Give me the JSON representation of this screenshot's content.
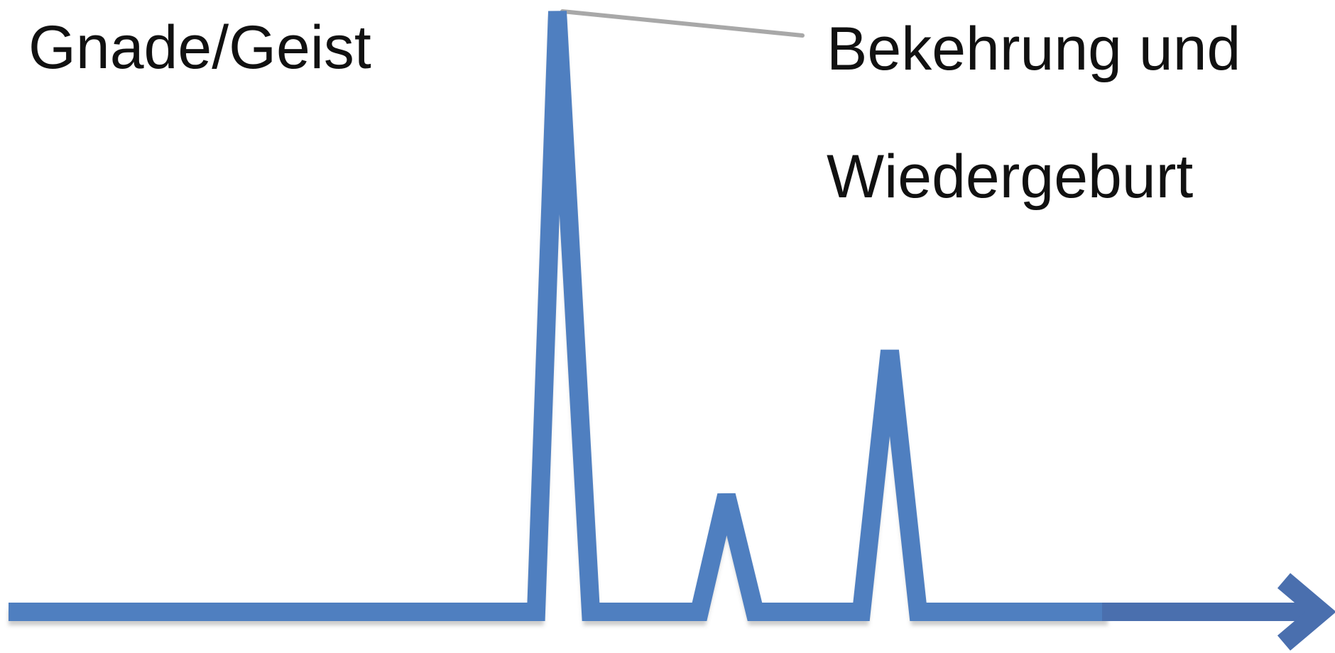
{
  "labels": {
    "left": "Gnade/Geist",
    "right_line1": "Bekehrung und",
    "right_line2": "Wiedergeburt"
  },
  "colors": {
    "line": "#4f7fc0",
    "arrow": "#4a6fae",
    "leader": "#a8a8a8",
    "shadow": "#6b6b6b",
    "text": "#111111"
  },
  "icons": {
    "arrow": "arrow-right-icon"
  }
}
